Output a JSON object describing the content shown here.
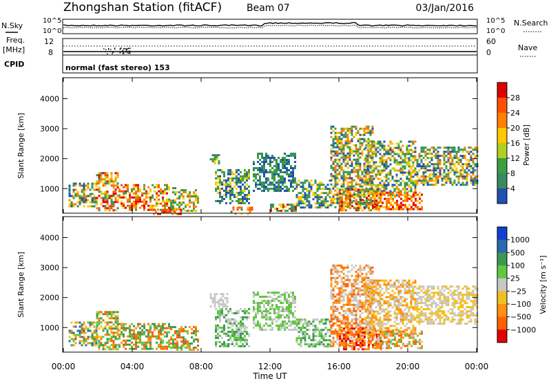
{
  "header": {
    "station": "Zhongshan Station (fitACF)",
    "beam": "Beam 07",
    "date": "03/Jan/2016"
  },
  "top_panels": {
    "nsky_label": "N.Sky",
    "nsky_ticks": [
      "10^5",
      "10^0"
    ],
    "nsearch_label": "N.Search",
    "nsearch_ticks": [
      "10^5",
      "10^0"
    ],
    "freq_label": "Freq.",
    "freq_unit": "[MHz]",
    "freq_ticks": [
      "12",
      "8"
    ],
    "nave_label": "Nave",
    "nave_ticks": [
      "60",
      "0"
    ],
    "cpid_label": "CPID",
    "cpid_text": "normal (fast stereo) 153"
  },
  "colors": {
    "power_scale": [
      "#1030ff",
      "#2050b0",
      "#3a8a60",
      "#3aa040",
      "#b0d020",
      "#ffc800",
      "#ff8000",
      "#ff5000",
      "#e00000"
    ],
    "velocity_scale": [
      "#1040d0",
      "#2a6ab0",
      "#3a9a50",
      "#60c840",
      "#c8c8c8",
      "#f0c020",
      "#ff9010",
      "#ff6000",
      "#e00000"
    ]
  },
  "chart_data": [
    {
      "type": "heatmap",
      "name": "power",
      "ylabel": "Slant Range [km]",
      "yticks": [
        1000,
        2000,
        3000,
        4000
      ],
      "ylim": [
        180,
        4700
      ],
      "xlim_hours": [
        0,
        24
      ],
      "colorbar_label": "Power [dB]",
      "colorbar_ticks": [
        "4",
        "8",
        "12",
        "16",
        "20",
        "24",
        "28"
      ],
      "regions": [
        {
          "t": [
            0.3,
            1.9
          ],
          "r": [
            400,
            1200
          ],
          "c": [
            1,
            2,
            3,
            5,
            6
          ]
        },
        {
          "t": [
            1.9,
            3.2
          ],
          "r": [
            300,
            1550
          ],
          "c": [
            2,
            4,
            5,
            6,
            7,
            8
          ]
        },
        {
          "t": [
            3.2,
            6.2
          ],
          "r": [
            300,
            1150
          ],
          "c": [
            3,
            5,
            6,
            7,
            8
          ]
        },
        {
          "t": [
            6.2,
            7.8
          ],
          "r": [
            250,
            1050
          ],
          "c": [
            2,
            3,
            5,
            6
          ]
        },
        {
          "t": [
            5.2,
            7.0
          ],
          "r": [
            180,
            330
          ],
          "c": [
            8,
            7,
            6
          ]
        },
        {
          "t": [
            8.5,
            9.0
          ],
          "r": [
            1850,
            2150
          ],
          "c": [
            2,
            3,
            5
          ]
        },
        {
          "t": [
            8.8,
            10.8
          ],
          "r": [
            500,
            1650
          ],
          "c": [
            1,
            2,
            3,
            5
          ]
        },
        {
          "t": [
            9.7,
            11.0
          ],
          "r": [
            180,
            400
          ],
          "c": [
            2,
            5,
            6,
            7
          ]
        },
        {
          "t": [
            11.0,
            13.5
          ],
          "r": [
            900,
            2200
          ],
          "c": [
            1,
            2,
            3
          ]
        },
        {
          "t": [
            12.0,
            13.5
          ],
          "r": [
            250,
            500
          ],
          "c": [
            2,
            3,
            5,
            8
          ]
        },
        {
          "t": [
            13.5,
            15.5
          ],
          "r": [
            400,
            1300
          ],
          "c": [
            1,
            2,
            3,
            5
          ]
        },
        {
          "t": [
            15.5,
            18.0
          ],
          "r": [
            350,
            3100
          ],
          "c": [
            1,
            2,
            3,
            5,
            6
          ]
        },
        {
          "t": [
            16.0,
            18.5
          ],
          "r": [
            300,
            1000
          ],
          "c": [
            3,
            5,
            6,
            7,
            8
          ]
        },
        {
          "t": [
            17.5,
            20.5
          ],
          "r": [
            800,
            2600
          ],
          "c": [
            1,
            2,
            3,
            4,
            5,
            6
          ]
        },
        {
          "t": [
            18.0,
            20.8
          ],
          "r": [
            300,
            900
          ],
          "c": [
            5,
            6,
            7,
            8
          ]
        },
        {
          "t": [
            20.5,
            24.0
          ],
          "r": [
            1100,
            2400
          ],
          "c": [
            1,
            2,
            3,
            5,
            6
          ]
        }
      ]
    },
    {
      "type": "heatmap",
      "name": "velocity",
      "ylabel": "Slant Range [km]",
      "yticks": [
        1000,
        2000,
        3000,
        4000
      ],
      "ylim": [
        180,
        4700
      ],
      "xlim_hours": [
        0,
        24
      ],
      "xticks": [
        "00:00",
        "04:00",
        "08:00",
        "12:00",
        "16:00",
        "20:00",
        "00:00"
      ],
      "xlabel": "Time UT",
      "colorbar_label": "Velocity [m s⁻¹]",
      "colorbar_ticks": [
        "1000",
        "500",
        "100",
        "25",
        "−25",
        "−100",
        "−500",
        "−1000"
      ],
      "regions": [
        {
          "t": [
            0.3,
            1.9
          ],
          "r": [
            400,
            1200
          ],
          "c": [
            1,
            2,
            3,
            5,
            6
          ]
        },
        {
          "t": [
            1.9,
            3.2
          ],
          "r": [
            300,
            1550
          ],
          "c": [
            2,
            3,
            5,
            6,
            7
          ]
        },
        {
          "t": [
            3.2,
            6.2
          ],
          "r": [
            300,
            1150
          ],
          "c": [
            2,
            3,
            6,
            7
          ]
        },
        {
          "t": [
            6.2,
            7.8
          ],
          "r": [
            250,
            1050
          ],
          "c": [
            2,
            3,
            6,
            7
          ]
        },
        {
          "t": [
            8.5,
            9.5
          ],
          "r": [
            1700,
            2150
          ],
          "c": [
            4
          ]
        },
        {
          "t": [
            8.8,
            10.8
          ],
          "r": [
            400,
            1650
          ],
          "c": [
            4,
            3,
            2
          ]
        },
        {
          "t": [
            11.0,
            13.5
          ],
          "r": [
            900,
            2200
          ],
          "c": [
            4,
            3
          ]
        },
        {
          "t": [
            13.5,
            15.5
          ],
          "r": [
            400,
            1300
          ],
          "c": [
            3,
            2,
            4
          ]
        },
        {
          "t": [
            15.5,
            18.0
          ],
          "r": [
            350,
            3100
          ],
          "c": [
            4,
            6,
            7
          ]
        },
        {
          "t": [
            16.0,
            18.5
          ],
          "r": [
            300,
            1000
          ],
          "c": [
            6,
            7,
            8
          ]
        },
        {
          "t": [
            17.5,
            20.5
          ],
          "r": [
            800,
            2600
          ],
          "c": [
            4,
            5,
            6
          ]
        },
        {
          "t": [
            18.0,
            20.8
          ],
          "r": [
            300,
            900
          ],
          "c": [
            3,
            4,
            6,
            7
          ]
        },
        {
          "t": [
            20.5,
            24.0
          ],
          "r": [
            1100,
            2400
          ],
          "c": [
            4,
            5
          ]
        }
      ]
    }
  ]
}
